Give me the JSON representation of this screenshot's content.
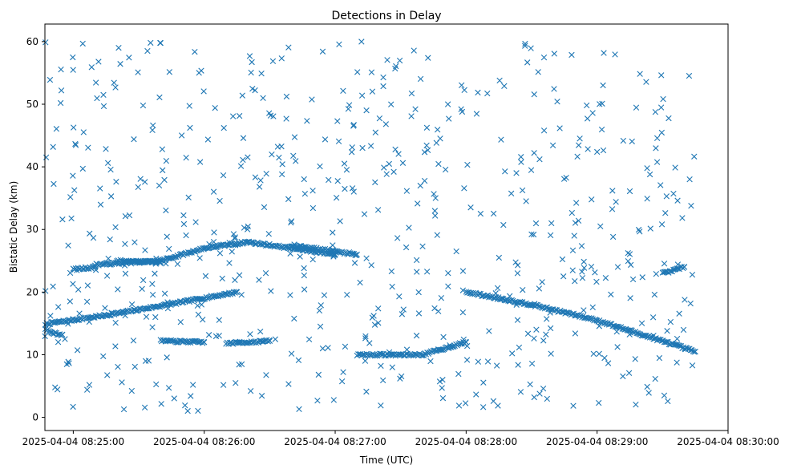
{
  "chart_data": {
    "type": "scatter",
    "title": "Detections in Delay",
    "xlabel": "Time (UTC)",
    "ylabel": "Bistatic Delay (km)",
    "x_range": [
      "2025-04-04 08:24:47",
      "2025-04-04 08:30:00"
    ],
    "ylim": [
      -2.1,
      62.8
    ],
    "x_ticks": [
      "2025-04-04 08:25:00",
      "2025-04-04 08:26:00",
      "2025-04-04 08:27:00",
      "2025-04-04 08:28:00",
      "2025-04-04 08:29:00",
      "2025-04-04 08:30:00"
    ],
    "y_ticks": [
      0,
      10,
      20,
      30,
      40,
      50,
      60
    ],
    "grid": false,
    "marker": "x",
    "series_color": "#1f77b4",
    "tracks": [
      {
        "points": [
          [
            "2025-04-04 08:24:45",
            14.8
          ],
          [
            "2025-04-04 08:25:15",
            16.3
          ],
          [
            "2025-04-04 08:25:45",
            18.1
          ],
          [
            "2025-04-04 08:26:15",
            20.0
          ]
        ]
      },
      {
        "points": [
          [
            "2025-04-04 08:24:45",
            14.7
          ],
          [
            "2025-04-04 08:24:50",
            13.5
          ],
          [
            "2025-04-04 08:24:55",
            13.2
          ]
        ]
      },
      {
        "points": [
          [
            "2025-04-04 08:25:00",
            23.6
          ],
          [
            "2025-04-04 08:25:10",
            24.0
          ]
        ]
      },
      {
        "points": [
          [
            "2025-04-04 08:25:10",
            24.4
          ],
          [
            "2025-04-04 08:25:40",
            25.0
          ],
          [
            "2025-04-04 08:26:00",
            27.0
          ],
          [
            "2025-04-04 08:26:20",
            28.0
          ],
          [
            "2025-04-04 08:26:40",
            27.0
          ],
          [
            "2025-04-04 08:27:00",
            26.0
          ]
        ]
      },
      {
        "points": [
          [
            "2025-04-04 08:25:20",
            25.0
          ],
          [
            "2025-04-04 08:25:40",
            24.8
          ]
        ]
      },
      {
        "points": [
          [
            "2025-04-04 08:25:40",
            12.2
          ],
          [
            "2025-04-04 08:26:00",
            12.0
          ]
        ]
      },
      {
        "points": [
          [
            "2025-04-04 08:26:10",
            11.8
          ],
          [
            "2025-04-04 08:26:30",
            12.2
          ]
        ]
      },
      {
        "points": [
          [
            "2025-04-04 08:27:10",
            10.0
          ],
          [
            "2025-04-04 08:27:40",
            10.0
          ],
          [
            "2025-04-04 08:28:00",
            12.0
          ]
        ]
      },
      {
        "points": [
          [
            "2025-04-04 08:28:00",
            20.0
          ],
          [
            "2025-04-04 08:28:30",
            18.0
          ],
          [
            "2025-04-04 08:29:00",
            15.5
          ],
          [
            "2025-04-04 08:29:45",
            10.5
          ]
        ]
      },
      {
        "points": [
          [
            "2025-04-04 08:29:30",
            23.0
          ],
          [
            "2025-04-04 08:29:40",
            24.0
          ]
        ]
      },
      {
        "points": [
          [
            "2025-04-04 08:26:40",
            27.5
          ],
          [
            "2025-04-04 08:27:10",
            26.0
          ]
        ]
      }
    ],
    "scatter_seed": 7,
    "scatter_count": 640,
    "scatter_ylim": [
      1,
      60
    ],
    "x_range_scatter": [
      "2025-04-04 08:24:45",
      "2025-04-04 08:29:45"
    ]
  }
}
